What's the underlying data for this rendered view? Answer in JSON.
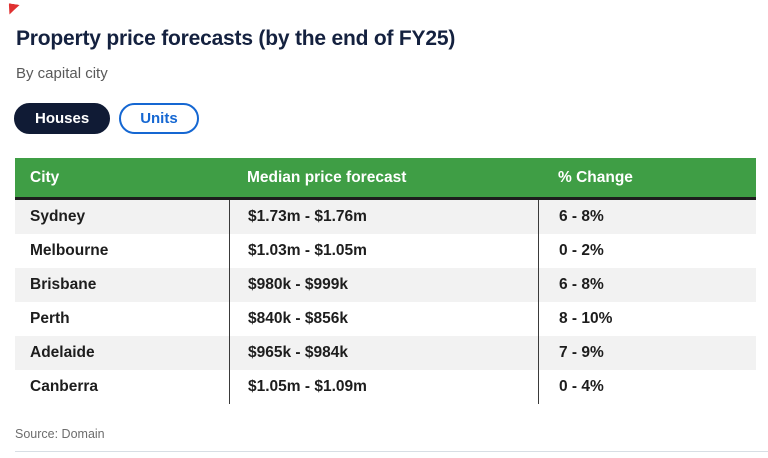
{
  "header": {
    "title": "Property price forecasts (by the end of FY25)",
    "subtitle": "By capital city"
  },
  "toggle": {
    "houses_label": "Houses",
    "units_label": "Units",
    "selected": "Houses",
    "selected_bg": "#101b35",
    "unselected_color": "#1567d2"
  },
  "colors": {
    "title": "#14213f",
    "table_header_bg": "#3f9e45",
    "table_header_text": "#ffffff",
    "row_alt_bg": "#f2f2f2",
    "accent_red": "#e03131"
  },
  "table": {
    "columns": {
      "city": "City",
      "price": "Median price forecast",
      "change": "% Change"
    },
    "rows": [
      {
        "city": "Sydney",
        "price": "$1.73m - $1.76m",
        "change": "6 - 8%"
      },
      {
        "city": "Melbourne",
        "price": "$1.03m - $1.05m",
        "change": "0 - 2%"
      },
      {
        "city": "Brisbane",
        "price": "$980k - $999k",
        "change": "6 - 8%"
      },
      {
        "city": "Perth",
        "price": "$840k - $856k",
        "change": "8 - 10%"
      },
      {
        "city": "Adelaide",
        "price": "$965k - $984k",
        "change": "7 - 9%"
      },
      {
        "city": "Canberra",
        "price": "$1.05m - $1.09m",
        "change": "0 - 4%"
      }
    ]
  },
  "footer": {
    "source": "Source: Domain"
  },
  "chart_data": {
    "type": "table",
    "title": "Property price forecasts (by the end of FY25)",
    "subtitle": "By capital city",
    "columns": [
      "City",
      "Median price forecast",
      "% Change"
    ],
    "rows": [
      [
        "Sydney",
        "$1.73m - $1.76m",
        "6 - 8%"
      ],
      [
        "Melbourne",
        "$1.03m - $1.05m",
        "0 - 2%"
      ],
      [
        "Brisbane",
        "$980k - $999k",
        "6 - 8%"
      ],
      [
        "Perth",
        "$840k - $856k",
        "8 - 10%"
      ],
      [
        "Adelaide",
        "$965k - $984k",
        "7 - 9%"
      ],
      [
        "Canberra",
        "$1.05m - $1.09m",
        "0 - 4%"
      ]
    ],
    "source": "Source: Domain",
    "active_view": "Houses"
  }
}
